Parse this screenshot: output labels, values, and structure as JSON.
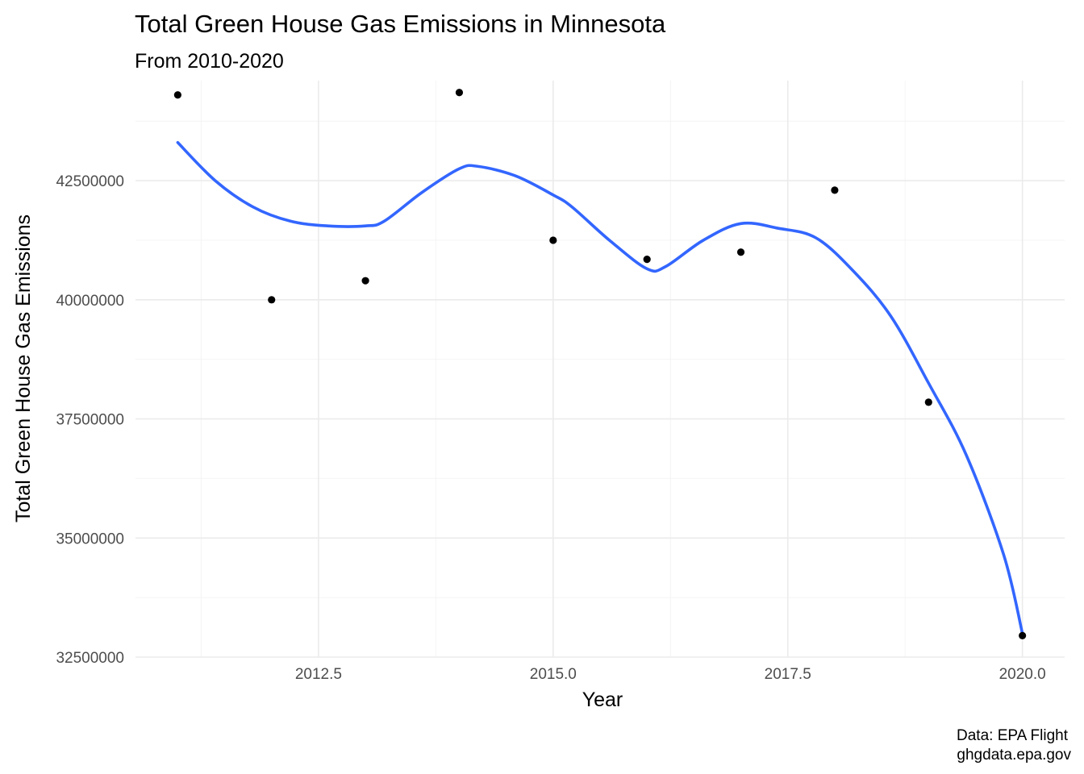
{
  "chart_data": {
    "type": "scatter",
    "title": "Total Green House Gas Emissions in Minnesota",
    "subtitle": "From 2010-2020",
    "xlabel": "Year",
    "ylabel": "Total Green House Gas Emissions",
    "caption_lines": [
      "Data: EPA Flight",
      "ghgdata.epa.gov"
    ],
    "xlim": [
      2010.55,
      2020.45
    ],
    "ylim": [
      32500000,
      44600000
    ],
    "x_ticks": [
      2012.5,
      2015.0,
      2017.5,
      2020.0
    ],
    "x_tick_labels": [
      "2012.5",
      "2015.0",
      "2017.5",
      "2020.0"
    ],
    "x_minor_ticks": [
      2011.25,
      2013.75,
      2016.25,
      2018.75
    ],
    "y_ticks": [
      32500000,
      35000000,
      37500000,
      40000000,
      42500000
    ],
    "y_tick_labels": [
      "32500000",
      "35000000",
      "37500000",
      "40000000",
      "42500000"
    ],
    "y_minor_ticks": [
      33750000,
      36250000,
      38750000,
      41250000,
      43750000
    ],
    "grid": true,
    "legend": "none",
    "point_color": "#000000",
    "smooth_color": "#3366FF",
    "points": {
      "x": [
        2011,
        2012,
        2013,
        2014,
        2015,
        2016,
        2017,
        2018,
        2019,
        2020
      ],
      "y": [
        44300000,
        40000000,
        40400000,
        44350000,
        41250000,
        40850000,
        41000000,
        42300000,
        37850000,
        32950000
      ]
    },
    "smooth_line": {
      "x": [
        2011.0,
        2011.4,
        2011.8,
        2012.2,
        2012.6,
        2013.0,
        2013.2,
        2013.6,
        2014.0,
        2014.2,
        2014.6,
        2015.0,
        2015.2,
        2015.6,
        2016.0,
        2016.2,
        2016.6,
        2017.0,
        2017.4,
        2017.8,
        2018.2,
        2018.6,
        2019.0,
        2019.4,
        2019.8,
        2020.0
      ],
      "y": [
        43300000,
        42500000,
        41950000,
        41650000,
        41550000,
        41550000,
        41650000,
        42250000,
        42750000,
        42800000,
        42600000,
        42200000,
        41950000,
        41250000,
        40650000,
        40700000,
        41250000,
        41600000,
        41500000,
        41300000,
        40600000,
        39650000,
        38250000,
        36750000,
        34650000,
        33000000
      ]
    }
  }
}
